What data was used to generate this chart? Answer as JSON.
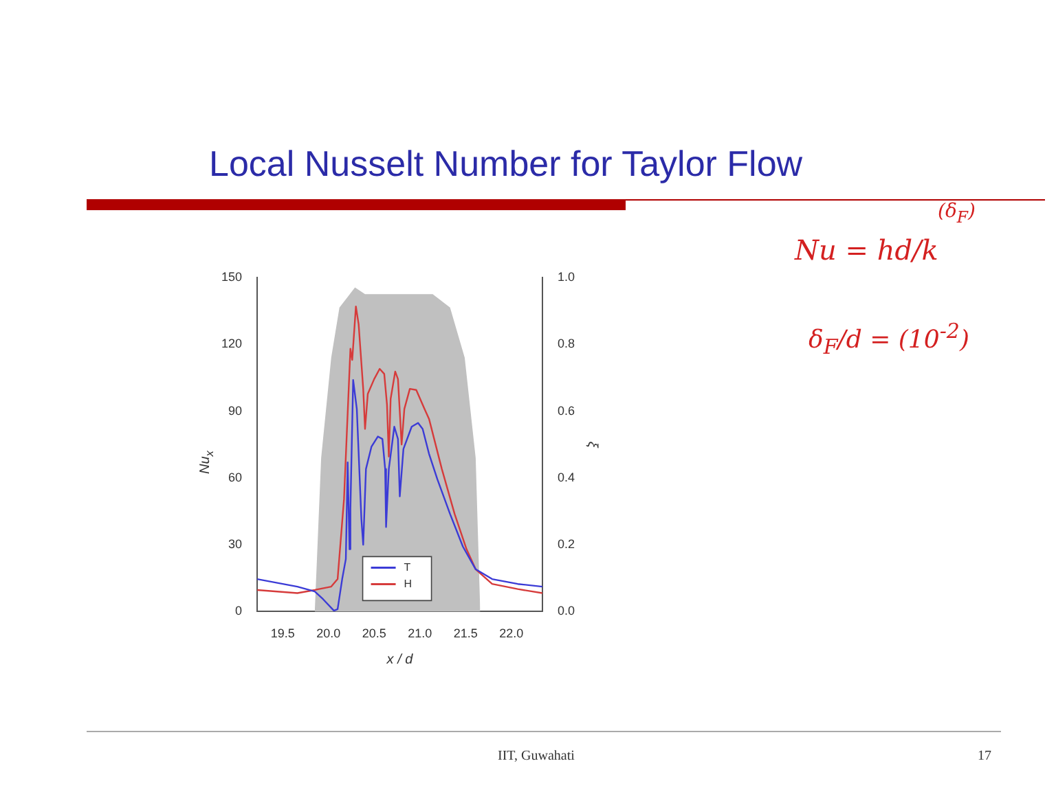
{
  "chart_data": {
    "type": "line",
    "title": "Local Nusselt Number for Taylor Flow",
    "xlabel": "x / d",
    "ylabel": "Nu$_{x}$",
    "y2label": "ξ",
    "xlim": [
      19.22,
      22.34
    ],
    "xticks": [
      19.5,
      {
        "value": 20,
        "label": "20.0"
      },
      20.5,
      {
        "value": 21,
        "label": "21.0"
      },
      21.5,
      {
        "value": 22,
        "label": "22.0"
      }
    ],
    "ylim": [
      0,
      150
    ],
    "yticks": [
      0,
      30,
      60,
      90,
      120,
      150
    ],
    "y2lim": [
      0,
      1
    ],
    "y2ticks": [
      {
        "value": 0,
        "label": "0.0"
      },
      0.2,
      0.4,
      0.6,
      0.8,
      {
        "value": 1,
        "label": "1.0"
      }
    ],
    "grid": false,
    "legend": "bottom",
    "marker": "none",
    "line_style": "solid",
    "annotations": [
      "Nu = hd/k",
      "(δ$_{F}$)",
      "δ$_{F}$/d = (10$^{-2}$)",
      "IIT, Guwahati",
      "17"
    ],
    "series": [
      {
        "type": "area",
        "axis": "y2",
        "color": "#c0c0c0",
        "x": [
          19.85,
          19.92,
          20.03,
          20.12,
          20.29,
          20.4,
          20.8,
          21.14,
          21.33,
          21.49,
          21.61,
          21.66
        ],
        "values": [
          0,
          0.46,
          0.76,
          0.91,
          0.97,
          0.95,
          0.95,
          0.95,
          0.91,
          0.76,
          0.46,
          0
        ]
      },
      {
        "name": "T",
        "color": "#3b3bd6",
        "x": [
          19.22,
          19.66,
          19.85,
          19.94,
          20.06,
          20.1,
          20.15,
          20.19,
          20.21,
          20.23,
          20.24,
          20.27,
          20.31,
          20.36,
          20.38,
          20.41,
          20.47,
          20.54,
          20.59,
          20.62,
          20.63,
          20.66,
          20.72,
          20.76,
          20.78,
          20.82,
          20.91,
          20.98,
          21.03,
          21.1,
          21.19,
          21.33,
          21.47,
          21.61,
          21.79,
          22.07,
          22.34
        ],
        "values": [
          14.6,
          11.2,
          9,
          5.6,
          0.4,
          1.1,
          14.6,
          23.6,
          67,
          28,
          46,
          104,
          91,
          41.5,
          30,
          64,
          74,
          78.6,
          77.5,
          64,
          38,
          64,
          83,
          77.5,
          51.7,
          73,
          83,
          84.7,
          82,
          70.8,
          59.5,
          43.8,
          29.2,
          19,
          14.6,
          12.4,
          11.2
        ]
      },
      {
        "name": "H",
        "color": "#d63b3b",
        "x": [
          19.22,
          19.66,
          19.85,
          20.03,
          20.1,
          20.17,
          20.24,
          20.26,
          20.3,
          20.33,
          20.38,
          20.4,
          20.43,
          20.5,
          20.56,
          20.61,
          20.64,
          20.66,
          20.68,
          20.73,
          20.76,
          20.8,
          20.83,
          20.89,
          20.96,
          21.05,
          21.1,
          21.24,
          21.38,
          21.51,
          21.61,
          21.79,
          22.07,
          22.34
        ],
        "values": [
          9.7,
          8.3,
          9.7,
          11.2,
          14.6,
          50.5,
          118,
          113,
          137,
          129,
          100,
          82,
          97.7,
          104.4,
          109,
          106.7,
          93,
          69.6,
          95.5,
          107.8,
          104.4,
          75,
          91,
          100,
          99.5,
          91,
          86.5,
          64,
          43.8,
          28,
          19,
          12.4,
          10.1,
          8.3
        ]
      }
    ]
  }
}
